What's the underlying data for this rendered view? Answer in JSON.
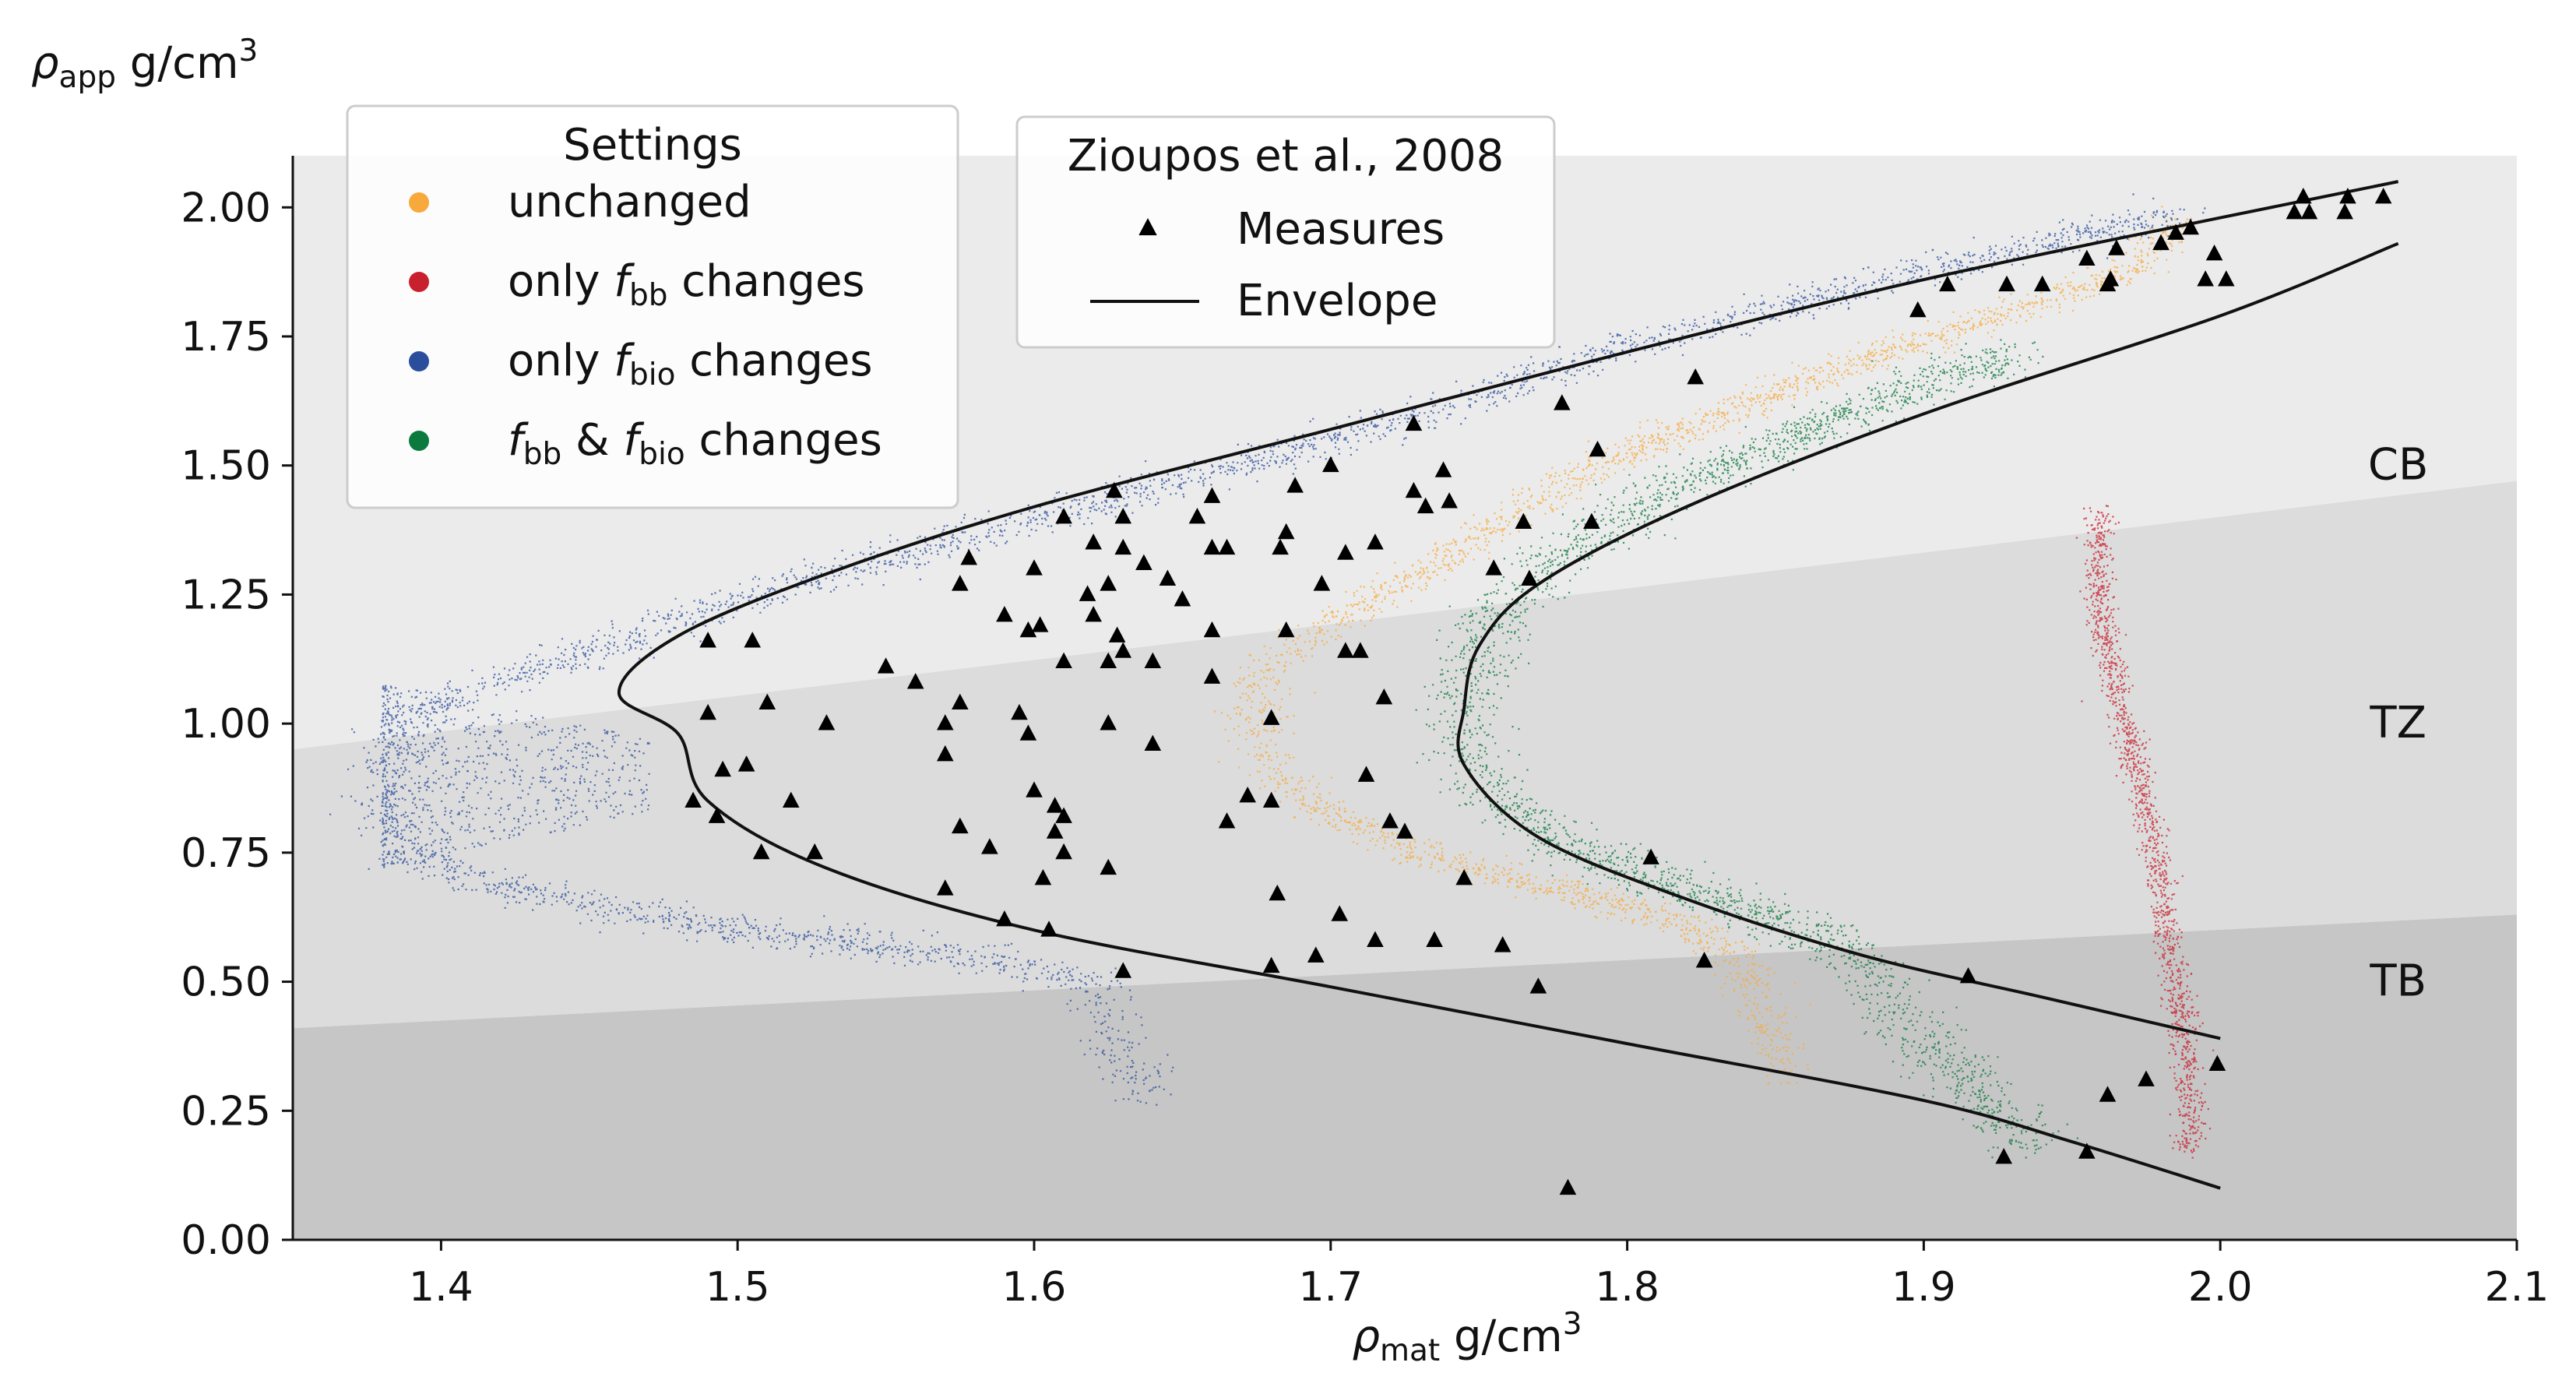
{
  "chart_data": {
    "type": "scatter",
    "title": "",
    "xlabel": {
      "symbol": "ρ",
      "sub": "mat",
      "unit": " g/cm",
      "sup": "3"
    },
    "ylabel": {
      "symbol": "ρ",
      "sub": "app",
      "unit": " g/cm",
      "sup": "3"
    },
    "xlim": [
      1.35,
      2.1
    ],
    "ylim": [
      0.0,
      2.1
    ],
    "xticks": [
      1.4,
      1.5,
      1.6,
      1.7,
      1.8,
      1.9,
      2.0,
      2.1
    ],
    "xtick_labels": [
      "1.4",
      "1.5",
      "1.6",
      "1.7",
      "1.8",
      "1.9",
      "2.0",
      "2.1"
    ],
    "yticks": [
      0.0,
      0.25,
      0.5,
      0.75,
      1.0,
      1.25,
      1.5,
      1.75,
      2.0
    ],
    "ytick_labels": [
      "0.00",
      "0.25",
      "0.50",
      "0.75",
      "1.00",
      "1.25",
      "1.50",
      "1.75",
      "2.00"
    ],
    "grid": false,
    "regions": [
      {
        "label": "CB",
        "color": "#ebebeb",
        "boundary_low": [
          [
            1.35,
            0.95
          ],
          [
            2.1,
            1.47
          ]
        ],
        "label_xy": [
          2.06,
          1.5
        ]
      },
      {
        "label": "TZ",
        "color": "#dcdcdc",
        "boundary_low": [
          [
            1.35,
            0.41
          ],
          [
            2.1,
            0.63
          ]
        ],
        "label_xy": [
          2.06,
          1.0
        ]
      },
      {
        "label": "TB",
        "color": "#c6c6c6",
        "boundary_low": [
          [
            1.35,
            0.0
          ],
          [
            2.1,
            0.0
          ]
        ],
        "label_xy": [
          2.06,
          0.5
        ]
      }
    ],
    "settings_legend": {
      "title": "Settings",
      "placement": "upper-left",
      "entries": [
        {
          "color": "#f7a93b",
          "parts": [
            {
              "t": "unchanged"
            }
          ]
        },
        {
          "color": "#c8202d",
          "parts": [
            {
              "t": "only "
            },
            {
              "t": "f",
              "i": true
            },
            {
              "t": "bb",
              "sub": true
            },
            {
              "t": " changes"
            }
          ]
        },
        {
          "color": "#2a4e9c",
          "parts": [
            {
              "t": "only "
            },
            {
              "t": "f",
              "i": true
            },
            {
              "t": "bio",
              "sub": true
            },
            {
              "t": " changes"
            }
          ]
        },
        {
          "color": "#0b7a3e",
          "parts": [
            {
              "t": "f",
              "i": true
            },
            {
              "t": "bb",
              "sub": true
            },
            {
              "t": " & "
            },
            {
              "t": "f",
              "i": true
            },
            {
              "t": "bio",
              "sub": true
            },
            {
              "t": " changes"
            }
          ]
        }
      ]
    },
    "reference_legend": {
      "title": "Zioupos et al., 2008",
      "placement": "upper-center",
      "entries": [
        {
          "kind": "triangle",
          "label": "Measures"
        },
        {
          "kind": "line",
          "label": "Envelope"
        }
      ]
    },
    "series": [
      {
        "name": "unchanged",
        "color": "#f7a93b",
        "path": [
          [
            1.987,
            1.98
          ],
          [
            1.97,
            1.88
          ],
          [
            1.92,
            1.78
          ],
          [
            1.86,
            1.67
          ],
          [
            1.79,
            1.5
          ],
          [
            1.745,
            1.35
          ],
          [
            1.72,
            1.26
          ],
          [
            1.695,
            1.18
          ],
          [
            1.678,
            1.1
          ],
          [
            1.674,
            1.0
          ],
          [
            1.682,
            0.9
          ],
          [
            1.7,
            0.82
          ],
          [
            1.73,
            0.75
          ],
          [
            1.77,
            0.69
          ],
          [
            1.81,
            0.63
          ],
          [
            1.835,
            0.56
          ],
          [
            1.845,
            0.45
          ],
          [
            1.853,
            0.31
          ]
        ],
        "spread": 0.005,
        "count": 2400
      },
      {
        "name": "only f_bb changes",
        "color": "#c8202d",
        "path": [
          [
            1.96,
            1.42
          ],
          [
            1.958,
            1.32
          ],
          [
            1.96,
            1.2
          ],
          [
            1.965,
            1.05
          ],
          [
            1.972,
            0.9
          ],
          [
            1.978,
            0.75
          ],
          [
            1.982,
            0.6
          ],
          [
            1.986,
            0.45
          ],
          [
            1.989,
            0.32
          ],
          [
            1.99,
            0.17
          ]
        ],
        "spread": 0.0025,
        "count": 1400
      },
      {
        "name": "only f_bio changes",
        "color": "#2a4e9c",
        "path": [
          [
            1.985,
            1.99
          ],
          [
            1.9,
            1.88
          ],
          [
            1.8,
            1.73
          ],
          [
            1.7,
            1.55
          ],
          [
            1.6,
            1.4
          ],
          [
            1.5,
            1.24
          ],
          [
            1.45,
            1.14
          ],
          [
            1.41,
            1.07
          ],
          [
            1.385,
            1.0
          ],
          [
            1.38,
            0.85
          ],
          [
            1.385,
            0.75
          ],
          [
            1.43,
            0.67
          ],
          [
            1.5,
            0.6
          ],
          [
            1.58,
            0.55
          ],
          [
            1.62,
            0.5
          ],
          [
            1.625,
            0.4
          ],
          [
            1.64,
            0.27
          ]
        ],
        "spread": 0.006,
        "count": 3000,
        "bulge": {
          "x_range": [
            1.38,
            1.47
          ],
          "y_center": 0.9,
          "y_half": 0.18,
          "count": 900
        }
      },
      {
        "name": "f_bb & f_bio changes",
        "color": "#0b7a3e",
        "path": [
          [
            1.93,
            1.72
          ],
          [
            1.86,
            1.57
          ],
          [
            1.81,
            1.44
          ],
          [
            1.77,
            1.3
          ],
          [
            1.752,
            1.18
          ],
          [
            1.745,
            1.05
          ],
          [
            1.745,
            0.95
          ],
          [
            1.755,
            0.86
          ],
          [
            1.78,
            0.76
          ],
          [
            1.82,
            0.68
          ],
          [
            1.86,
            0.6
          ],
          [
            1.88,
            0.54
          ],
          [
            1.89,
            0.45
          ],
          [
            1.91,
            0.33
          ],
          [
            1.937,
            0.18
          ]
        ],
        "spread": 0.007,
        "count": 2600
      }
    ],
    "envelope": {
      "name": "Envelope",
      "color": "#111111",
      "curves": [
        [
          [
            1.46,
            1.06
          ],
          [
            1.48,
            1.17
          ],
          [
            1.53,
            1.29
          ],
          [
            1.6,
            1.42
          ],
          [
            1.7,
            1.57
          ],
          [
            1.8,
            1.72
          ],
          [
            1.9,
            1.86
          ],
          [
            2.0,
            1.98
          ],
          [
            2.06,
            2.05
          ]
        ],
        [
          [
            1.48,
            0.98
          ],
          [
            1.49,
            0.85
          ],
          [
            1.53,
            0.72
          ],
          [
            1.6,
            0.6
          ],
          [
            1.7,
            0.49
          ],
          [
            1.8,
            0.38
          ],
          [
            1.9,
            0.27
          ],
          [
            1.95,
            0.19
          ],
          [
            2.0,
            0.1
          ]
        ],
        [
          [
            1.745,
            1.03
          ],
          [
            1.75,
            1.15
          ],
          [
            1.77,
            1.27
          ],
          [
            1.82,
            1.42
          ],
          [
            1.9,
            1.6
          ],
          [
            2.0,
            1.79
          ],
          [
            2.06,
            1.93
          ]
        ],
        [
          [
            1.745,
            0.92
          ],
          [
            1.77,
            0.78
          ],
          [
            1.82,
            0.66
          ],
          [
            1.88,
            0.55
          ],
          [
            1.94,
            0.47
          ],
          [
            2.0,
            0.39
          ]
        ]
      ]
    },
    "measures": {
      "name": "Measures",
      "color": "#000000",
      "points": [
        [
          1.49,
          1.16
        ],
        [
          1.505,
          1.16
        ],
        [
          1.49,
          1.02
        ],
        [
          1.51,
          1.04
        ],
        [
          1.53,
          1.0
        ],
        [
          1.495,
          0.91
        ],
        [
          1.503,
          0.92
        ],
        [
          1.485,
          0.85
        ],
        [
          1.493,
          0.82
        ],
        [
          1.518,
          0.85
        ],
        [
          1.508,
          0.75
        ],
        [
          1.526,
          0.75
        ],
        [
          1.55,
          1.11
        ],
        [
          1.56,
          1.08
        ],
        [
          1.57,
          1.0
        ],
        [
          1.575,
          1.04
        ],
        [
          1.57,
          0.94
        ],
        [
          1.575,
          0.8
        ],
        [
          1.585,
          0.76
        ],
        [
          1.59,
          0.62
        ],
        [
          1.57,
          0.68
        ],
        [
          1.575,
          1.27
        ],
        [
          1.578,
          1.32
        ],
        [
          1.59,
          1.21
        ],
        [
          1.598,
          1.18
        ],
        [
          1.602,
          1.19
        ],
        [
          1.6,
          1.3
        ],
        [
          1.61,
          1.12
        ],
        [
          1.595,
          1.02
        ],
        [
          1.598,
          0.98
        ],
        [
          1.6,
          0.87
        ],
        [
          1.607,
          0.84
        ],
        [
          1.61,
          0.82
        ],
        [
          1.607,
          0.79
        ],
        [
          1.603,
          0.7
        ],
        [
          1.605,
          0.6
        ],
        [
          1.61,
          0.75
        ],
        [
          1.61,
          1.4
        ],
        [
          1.62,
          1.35
        ],
        [
          1.618,
          1.25
        ],
        [
          1.625,
          1.27
        ],
        [
          1.62,
          1.21
        ],
        [
          1.625,
          1.12
        ],
        [
          1.627,
          1.45
        ],
        [
          1.63,
          1.4
        ],
        [
          1.63,
          1.34
        ],
        [
          1.637,
          1.31
        ],
        [
          1.645,
          1.28
        ],
        [
          1.65,
          1.24
        ],
        [
          1.628,
          1.17
        ],
        [
          1.63,
          1.14
        ],
        [
          1.64,
          1.12
        ],
        [
          1.625,
          1.0
        ],
        [
          1.64,
          0.96
        ],
        [
          1.625,
          0.72
        ],
        [
          1.63,
          0.52
        ],
        [
          1.655,
          1.4
        ],
        [
          1.66,
          1.44
        ],
        [
          1.66,
          1.34
        ],
        [
          1.665,
          1.34
        ],
        [
          1.66,
          1.18
        ],
        [
          1.66,
          1.09
        ],
        [
          1.665,
          0.81
        ],
        [
          1.672,
          0.86
        ],
        [
          1.68,
          0.85
        ],
        [
          1.68,
          0.53
        ],
        [
          1.685,
          1.37
        ],
        [
          1.683,
          1.34
        ],
        [
          1.685,
          1.18
        ],
        [
          1.68,
          1.01
        ],
        [
          1.682,
          0.67
        ],
        [
          1.688,
          1.46
        ],
        [
          1.7,
          1.5
        ],
        [
          1.697,
          1.27
        ],
        [
          1.705,
          1.33
        ],
        [
          1.705,
          1.14
        ],
        [
          1.71,
          1.14
        ],
        [
          1.715,
          1.35
        ],
        [
          1.712,
          0.9
        ],
        [
          1.718,
          1.05
        ],
        [
          1.72,
          0.81
        ],
        [
          1.725,
          0.79
        ],
        [
          1.703,
          0.63
        ],
        [
          1.695,
          0.55
        ],
        [
          1.715,
          0.58
        ],
        [
          1.728,
          1.58
        ],
        [
          1.728,
          1.45
        ],
        [
          1.732,
          1.42
        ],
        [
          1.738,
          1.49
        ],
        [
          1.74,
          1.43
        ],
        [
          1.735,
          0.58
        ],
        [
          1.745,
          0.7
        ],
        [
          1.755,
          1.3
        ],
        [
          1.765,
          1.39
        ],
        [
          1.767,
          1.28
        ],
        [
          1.758,
          0.57
        ],
        [
          1.77,
          0.49
        ],
        [
          1.778,
          1.62
        ],
        [
          1.788,
          1.39
        ],
        [
          1.79,
          1.53
        ],
        [
          1.808,
          0.74
        ],
        [
          1.78,
          0.1
        ],
        [
          1.823,
          1.67
        ],
        [
          1.826,
          0.54
        ],
        [
          1.898,
          1.8
        ],
        [
          1.908,
          1.85
        ],
        [
          1.928,
          1.85
        ],
        [
          1.94,
          1.85
        ],
        [
          1.955,
          1.9
        ],
        [
          1.962,
          1.85
        ],
        [
          1.963,
          1.86
        ],
        [
          1.965,
          1.92
        ],
        [
          1.98,
          1.93
        ],
        [
          1.985,
          1.95
        ],
        [
          1.99,
          1.96
        ],
        [
          1.995,
          1.86
        ],
        [
          1.998,
          1.91
        ],
        [
          2.002,
          1.86
        ],
        [
          2.025,
          1.99
        ],
        [
          2.028,
          2.02
        ],
        [
          2.03,
          1.99
        ],
        [
          2.042,
          1.99
        ],
        [
          2.043,
          2.02
        ],
        [
          2.055,
          2.02
        ],
        [
          1.915,
          0.51
        ],
        [
          1.927,
          0.16
        ],
        [
          1.955,
          0.17
        ],
        [
          1.962,
          0.28
        ],
        [
          1.975,
          0.31
        ],
        [
          1.999,
          0.34
        ]
      ]
    }
  }
}
